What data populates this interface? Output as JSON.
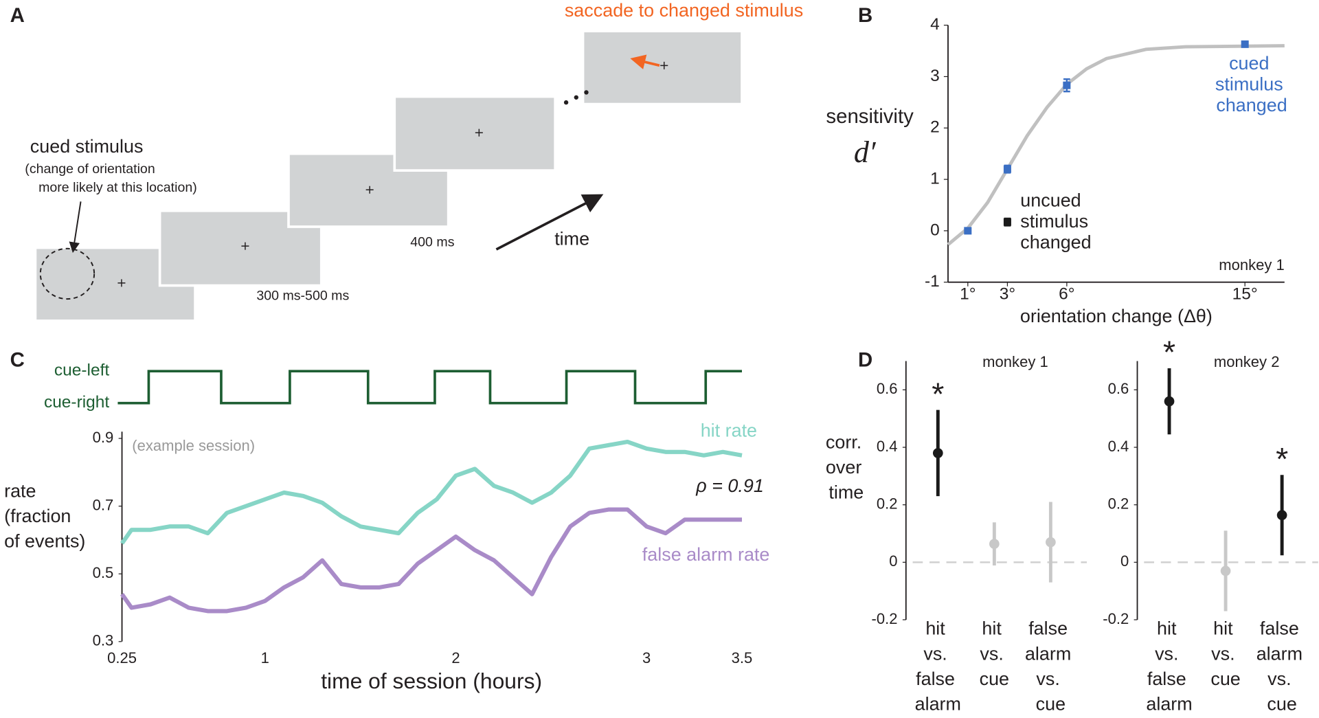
{
  "panel_labels": [
    "A",
    "B",
    "C",
    "D"
  ],
  "diagram": {
    "cued_label": "cued stimulus",
    "cued_note": [
      "(change of orientation",
      "more likely at this location)"
    ],
    "durations": [
      "300 ms-500 ms",
      "400 ms"
    ],
    "time_label": "time",
    "saccade_label": "saccade to changed stimulus"
  },
  "chart_data": [
    {
      "type": "scatter",
      "ylabel": "sensitivity",
      "ylabel_symbol": "d′",
      "xlabel": "orientation change (Δθ)",
      "annotation": "monkey 1",
      "xlim": [
        0,
        17
      ],
      "ylim": [
        -1,
        4
      ],
      "xticks": [
        {
          "value": 1,
          "label": "1°"
        },
        {
          "value": 3,
          "label": "3°"
        },
        {
          "value": 6,
          "label": "6°"
        },
        {
          "value": 15,
          "label": "15°"
        }
      ],
      "yticks": [
        -1,
        0,
        1,
        2,
        3,
        4
      ],
      "series": [
        {
          "name": "cued stimulus changed",
          "color": "#3b6fc4",
          "x": [
            1,
            3,
            6,
            15
          ],
          "values": [
            0,
            1.2,
            2.83,
            3.63
          ],
          "errors": [
            0.05,
            0.07,
            0.12,
            0.05
          ]
        },
        {
          "name": "uncued stimulus changed",
          "color": "#1a1a1a",
          "x": [
            3
          ],
          "values": [
            0.17
          ],
          "errors": [
            0.07
          ]
        }
      ],
      "fit_curve": {
        "color": "#c0c0c0",
        "x": [
          0,
          1,
          2,
          3,
          4,
          5,
          6,
          7,
          8,
          10,
          12,
          17
        ],
        "values": [
          -0.27,
          0.05,
          0.55,
          1.2,
          1.85,
          2.4,
          2.85,
          3.15,
          3.35,
          3.53,
          3.58,
          3.6
        ]
      }
    },
    {
      "type": "step",
      "levels": [
        "cue-right",
        "cue-left"
      ],
      "color": "#1d5e32",
      "xlim": [
        0.25,
        3.5
      ],
      "x": [
        0.25,
        0.39,
        0.77,
        1.13,
        1.54,
        1.89,
        2.18,
        2.58,
        2.94,
        3.31,
        3.5
      ],
      "values": [
        0,
        1,
        0,
        1,
        0,
        1,
        0,
        1,
        0,
        1,
        1
      ]
    },
    {
      "type": "line",
      "title": "(example session)",
      "annotation": "ρ = 0.91",
      "xlabel": "time of session (hours)",
      "ylabel": [
        "rate",
        "(fraction",
        "of events)"
      ],
      "xlim": [
        0.25,
        3.5
      ],
      "xticks": [
        0.25,
        1,
        2,
        3,
        3.5
      ],
      "ylim": [
        0.3,
        0.92
      ],
      "yticks": [
        0.3,
        0.5,
        0.7,
        0.9
      ],
      "x": [
        0.25,
        0.3,
        0.4,
        0.5,
        0.6,
        0.7,
        0.8,
        0.9,
        1.0,
        1.1,
        1.2,
        1.3,
        1.4,
        1.5,
        1.6,
        1.7,
        1.8,
        1.9,
        2.0,
        2.1,
        2.2,
        2.3,
        2.4,
        2.5,
        2.6,
        2.7,
        2.8,
        2.9,
        3.0,
        3.1,
        3.2,
        3.3,
        3.4,
        3.5
      ],
      "series": [
        {
          "name": "hit rate",
          "color": "#86d5c6",
          "values": [
            0.59,
            0.63,
            0.63,
            0.64,
            0.64,
            0.62,
            0.68,
            0.7,
            0.72,
            0.74,
            0.73,
            0.71,
            0.67,
            0.64,
            0.63,
            0.62,
            0.68,
            0.72,
            0.79,
            0.81,
            0.76,
            0.74,
            0.71,
            0.74,
            0.79,
            0.87,
            0.88,
            0.89,
            0.87,
            0.86,
            0.86,
            0.85,
            0.86,
            0.85
          ]
        },
        {
          "name": "false alarm rate",
          "color": "#a98bc8",
          "values": [
            0.44,
            0.4,
            0.41,
            0.43,
            0.4,
            0.39,
            0.39,
            0.4,
            0.42,
            0.46,
            0.49,
            0.54,
            0.47,
            0.46,
            0.46,
            0.47,
            0.53,
            0.57,
            0.61,
            0.57,
            0.54,
            0.49,
            0.44,
            0.55,
            0.64,
            0.68,
            0.69,
            0.69,
            0.64,
            0.62,
            0.66,
            0.66,
            0.66,
            0.66
          ]
        }
      ]
    },
    {
      "type": "errorbar",
      "title": "monkey 1",
      "ylabel": "corr. over time",
      "categories": [
        "hit vs. false alarm",
        "hit vs. cue",
        "false alarm vs. cue"
      ],
      "values": [
        0.38,
        0.064,
        0.07
      ],
      "errors": [
        0.15,
        0.075,
        0.14
      ],
      "colors": [
        "#1a1a1a",
        "#c8c8c8",
        "#c8c8c8"
      ],
      "markers": [
        "*",
        null,
        null
      ],
      "ylim": [
        -0.2,
        0.7
      ],
      "yticks": [
        -0.2,
        0,
        0.2,
        0.4,
        0.6
      ]
    },
    {
      "type": "errorbar",
      "title": "monkey 2",
      "categories": [
        "hit vs. false alarm",
        "hit vs. cue",
        "false alarm vs. cue"
      ],
      "values": [
        0.56,
        -0.03,
        0.164
      ],
      "errors": [
        0.115,
        0.14,
        0.14
      ],
      "colors": [
        "#1a1a1a",
        "#c8c8c8",
        "#1a1a1a"
      ],
      "markers": [
        "*",
        null,
        "*"
      ],
      "ylim": [
        -0.2,
        0.7
      ],
      "yticks": [
        -0.2,
        0,
        0.2,
        0.4,
        0.6
      ]
    }
  ]
}
